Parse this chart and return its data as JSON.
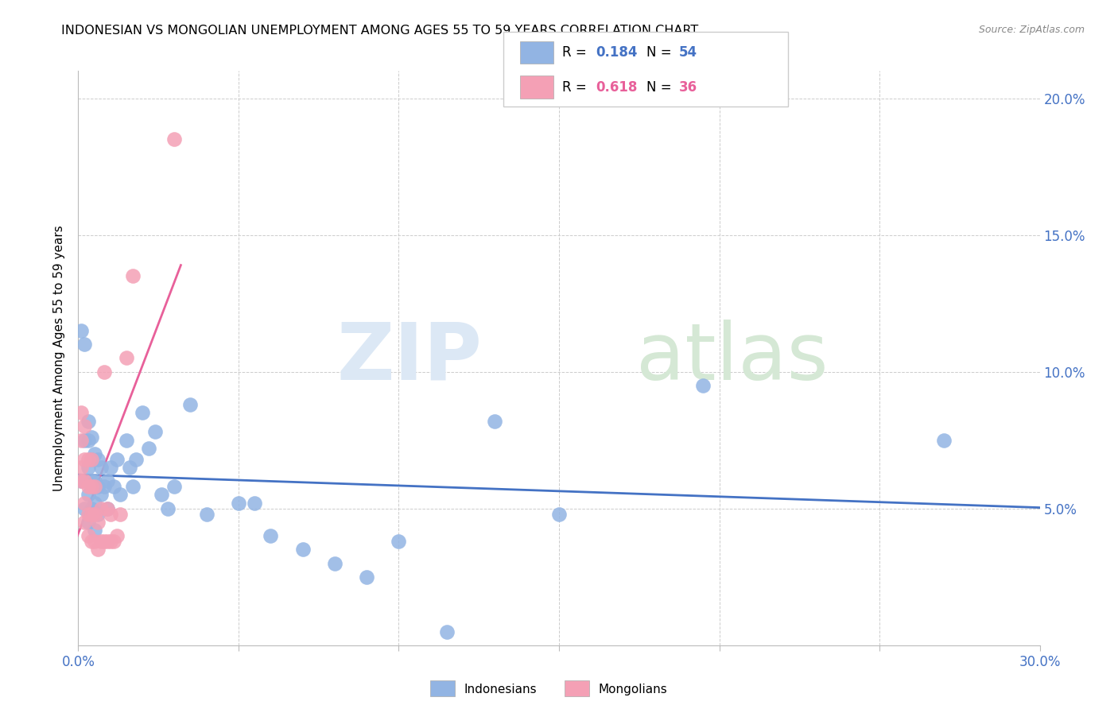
{
  "title": "INDONESIAN VS MONGOLIAN UNEMPLOYMENT AMONG AGES 55 TO 59 YEARS CORRELATION CHART",
  "source": "Source: ZipAtlas.com",
  "ylabel": "Unemployment Among Ages 55 to 59 years",
  "xlim": [
    0.0,
    0.3
  ],
  "ylim": [
    0.0,
    0.21
  ],
  "legend_r1": "R = 0.184",
  "legend_n1": "N = 54",
  "legend_r2": "R = 0.618",
  "legend_n2": "N = 36",
  "indonesian_color": "#92b4e3",
  "mongolian_color": "#f4a0b5",
  "indonesian_line_color": "#4472c4",
  "mongolian_line_color": "#e8609a",
  "indonesian_x": [
    0.001,
    0.001,
    0.002,
    0.002,
    0.002,
    0.003,
    0.003,
    0.003,
    0.003,
    0.003,
    0.004,
    0.004,
    0.004,
    0.004,
    0.005,
    0.005,
    0.005,
    0.005,
    0.006,
    0.006,
    0.006,
    0.007,
    0.007,
    0.008,
    0.009,
    0.009,
    0.01,
    0.011,
    0.012,
    0.013,
    0.015,
    0.016,
    0.017,
    0.018,
    0.02,
    0.022,
    0.024,
    0.026,
    0.028,
    0.03,
    0.035,
    0.04,
    0.05,
    0.055,
    0.06,
    0.07,
    0.08,
    0.09,
    0.1,
    0.115,
    0.13,
    0.15,
    0.195,
    0.27
  ],
  "indonesian_y": [
    0.06,
    0.115,
    0.05,
    0.075,
    0.11,
    0.045,
    0.055,
    0.065,
    0.075,
    0.082,
    0.05,
    0.06,
    0.068,
    0.076,
    0.042,
    0.052,
    0.06,
    0.07,
    0.048,
    0.058,
    0.068,
    0.055,
    0.065,
    0.058,
    0.05,
    0.06,
    0.065,
    0.058,
    0.068,
    0.055,
    0.075,
    0.065,
    0.058,
    0.068,
    0.085,
    0.072,
    0.078,
    0.055,
    0.05,
    0.058,
    0.088,
    0.048,
    0.052,
    0.052,
    0.04,
    0.035,
    0.03,
    0.025,
    0.038,
    0.005,
    0.082,
    0.048,
    0.095,
    0.075
  ],
  "mongolian_x": [
    0.001,
    0.001,
    0.001,
    0.001,
    0.002,
    0.002,
    0.002,
    0.002,
    0.002,
    0.003,
    0.003,
    0.003,
    0.003,
    0.004,
    0.004,
    0.004,
    0.004,
    0.005,
    0.005,
    0.005,
    0.006,
    0.006,
    0.007,
    0.007,
    0.008,
    0.008,
    0.009,
    0.009,
    0.01,
    0.01,
    0.011,
    0.012,
    0.013,
    0.015,
    0.017,
    0.03
  ],
  "mongolian_y": [
    0.06,
    0.065,
    0.075,
    0.085,
    0.045,
    0.052,
    0.06,
    0.068,
    0.08,
    0.04,
    0.048,
    0.058,
    0.068,
    0.038,
    0.048,
    0.058,
    0.068,
    0.038,
    0.048,
    0.058,
    0.035,
    0.045,
    0.038,
    0.05,
    0.038,
    0.1,
    0.038,
    0.05,
    0.038,
    0.048,
    0.038,
    0.04,
    0.048,
    0.105,
    0.135,
    0.185
  ]
}
